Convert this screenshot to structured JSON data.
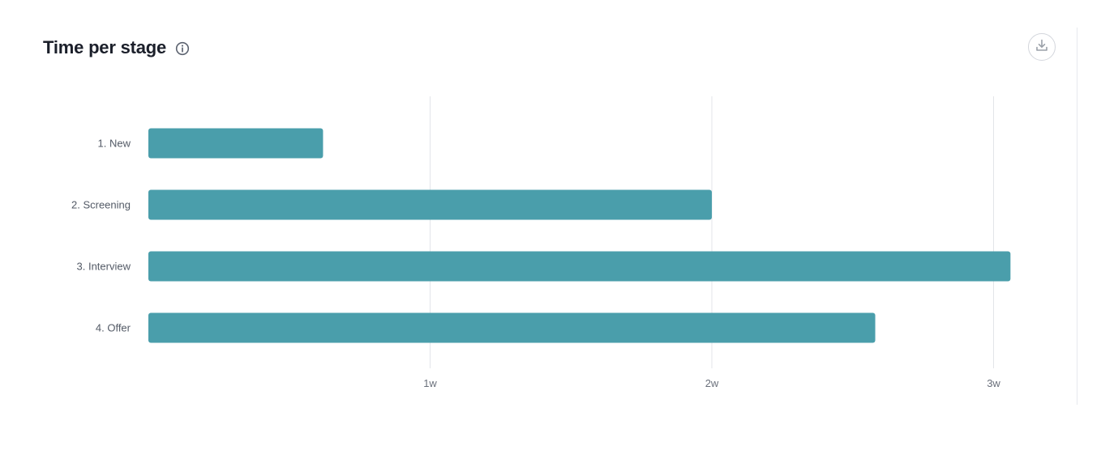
{
  "header": {
    "title": "Time per stage",
    "info_icon": "info-circle-icon",
    "download_icon": "download-icon"
  },
  "colors": {
    "bar": "#4a9eab",
    "grid": "#e3e5e9",
    "title": "#1b1f2a",
    "label": "#535a66"
  },
  "chart_data": {
    "type": "bar",
    "orientation": "horizontal",
    "title": "Time per stage",
    "xlabel": "",
    "ylabel": "",
    "unit": "weeks",
    "categories": [
      "1. New",
      "2. Screening",
      "3. Interview",
      "4. Offer"
    ],
    "values": [
      0.62,
      2.0,
      3.06,
      2.58
    ],
    "xlim": [
      0,
      3.15
    ],
    "xticks": [
      1,
      2,
      3
    ],
    "xtick_labels": [
      "1w",
      "2w",
      "3w"
    ],
    "grid": "vertical",
    "legend": "none"
  }
}
